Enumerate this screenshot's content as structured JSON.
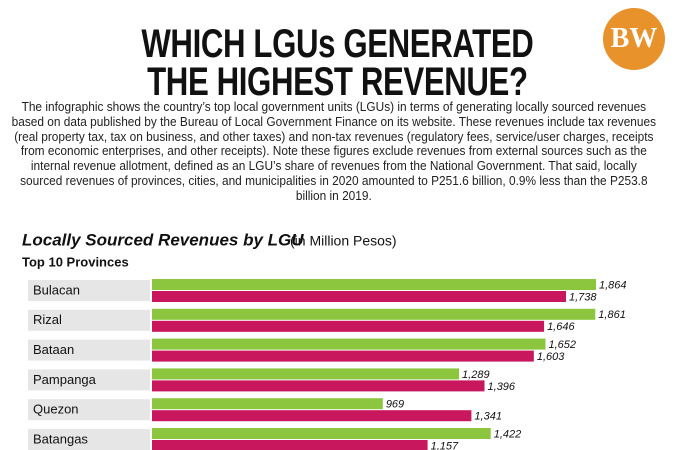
{
  "logo": "BW",
  "title": [
    "WHICH LGUs GENERATED",
    "THE HIGHEST REVENUE?"
  ],
  "intro": "The infographic shows the country’s top local government units (LGUs) in terms of generating locally sourced revenues based on data published by the Bureau of Local Government Finance on its website. These revenues include tax revenues (real property tax, tax on business, and other taxes) and non-tax revenues (regulatory fees, service/user charges, receipts from economic enterprises, and other receipts). Note these figures exclude revenues from external sources such as the internal revenue allotment, defined as an LGU’s share of revenues from the National Government. That said, locally sourced revenues of provinces, cities, and municipalities in 2020 amounted to P251.6 billion, 0.9% less than the P253.8 billion in 2019.",
  "chart_data": {
    "type": "bar",
    "orientation": "horizontal",
    "title": "Locally Sourced Revenues by LGU",
    "unit": "(in Million Pesos)",
    "subtitle": "Top 10 Provinces",
    "categories": [
      "Bulacan",
      "Rizal",
      "Bataan",
      "Pampanga",
      "Quezon",
      "Batangas"
    ],
    "series": [
      {
        "color": "#8cc63f",
        "values": [
          1864,
          1861,
          1652,
          1289,
          969,
          1422
        ],
        "value_labels": [
          "1,864",
          "1,861",
          "1,652",
          "1,289",
          "969",
          "1,422"
        ]
      },
      {
        "color": "#c8175d",
        "values": [
          1738,
          1646,
          1603,
          1396,
          1341,
          1157
        ],
        "value_labels": [
          "1,738",
          "1,646",
          "1,603",
          "1,396",
          "1,341",
          "1,157"
        ]
      }
    ]
  }
}
